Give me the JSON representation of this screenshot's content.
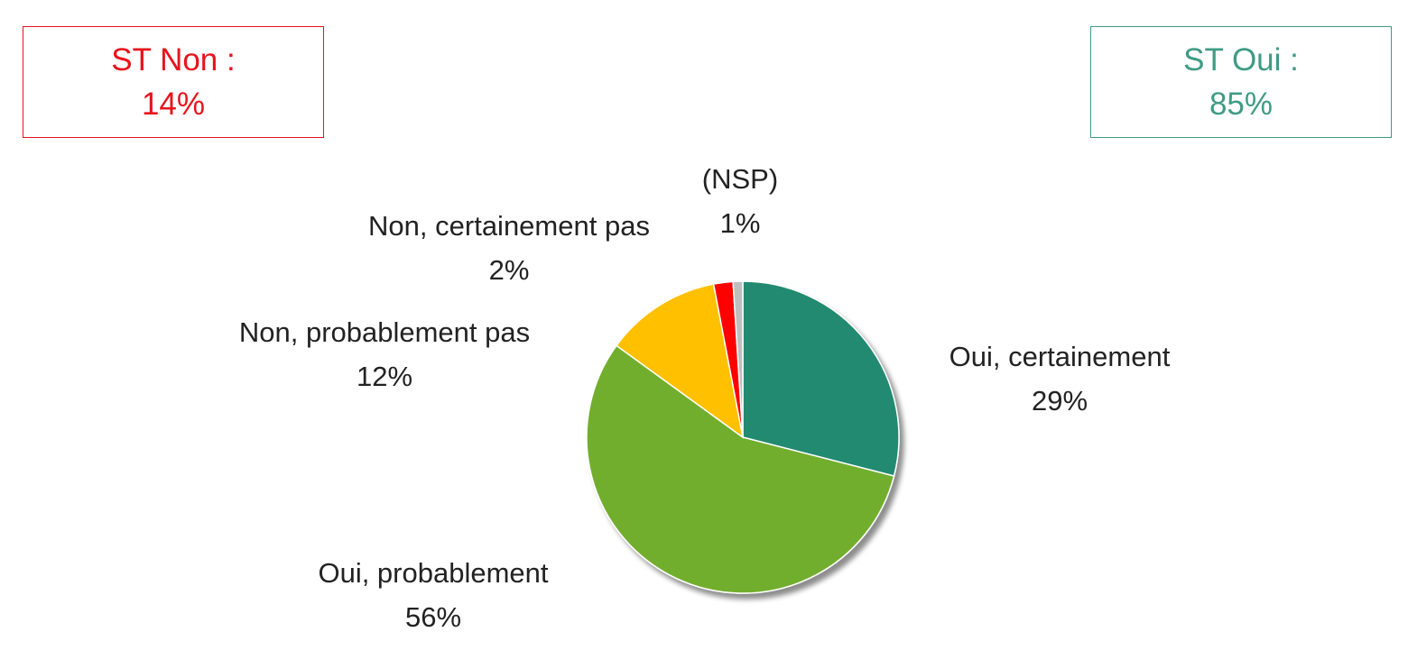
{
  "summary": {
    "non": {
      "label": "ST Non :",
      "value": "14%",
      "color": "#e8131b"
    },
    "oui": {
      "label": "ST Oui :",
      "value": "85%",
      "color": "#3f9b84"
    }
  },
  "chart_data": {
    "type": "pie",
    "title": "",
    "start_angle_deg": 0,
    "direction": "clockwise",
    "categories": [
      "Oui, certainement",
      "Oui, probablement",
      "Non, probablement pas",
      "Non, certainement pas",
      "(NSP)"
    ],
    "values": [
      29,
      56,
      12,
      2,
      1
    ],
    "value_labels": [
      "29%",
      "56%",
      "12%",
      "2%",
      "1%"
    ],
    "colors": [
      "#238a70",
      "#72ae2e",
      "#ffc000",
      "#ff0000",
      "#bfbfbf"
    ],
    "legend": "none"
  }
}
